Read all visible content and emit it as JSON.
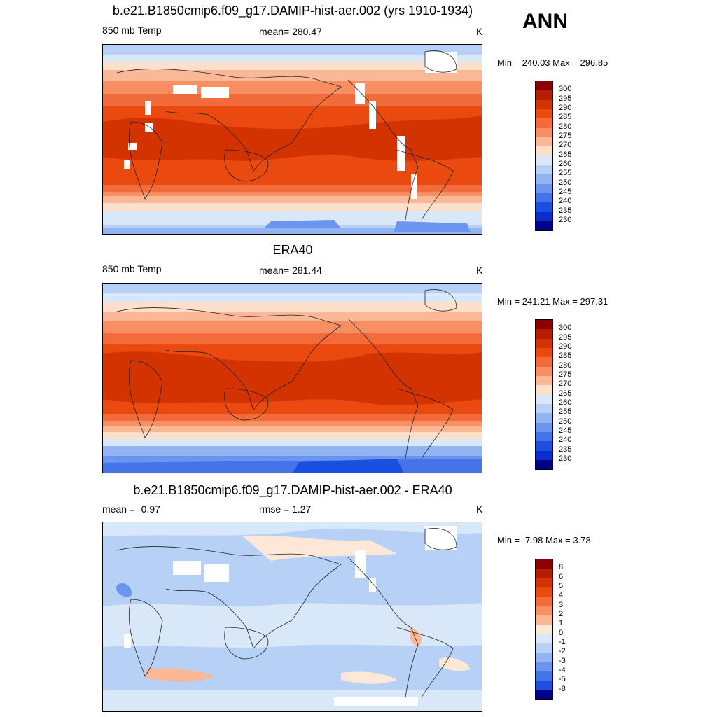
{
  "season": "ANN",
  "panels": [
    {
      "title": "b.e21.B1850cmip6.f09_g17.DAMIP-hist-aer.002 (yrs 1910-1934)",
      "left_label": "850 mb Temp",
      "center_label": "mean= 280.47",
      "units": "K",
      "minmax": "Min = 240.03 Max = 296.85",
      "kind": "abs"
    },
    {
      "title": "ERA40",
      "left_label": "850 mb Temp",
      "center_label": "mean= 281.44",
      "units": "K",
      "minmax": "Min = 241.21 Max = 297.31",
      "kind": "abs"
    },
    {
      "title": "b.e21.B1850cmip6.f09_g17.DAMIP-hist-aer.002 - ERA40",
      "left_label": "mean =  -0.97",
      "center_label": "rmse =   1.27",
      "units": "K",
      "minmax": "Min =  -7.98 Max =   3.78",
      "kind": "diff"
    }
  ],
  "colorbars": {
    "abs": {
      "labels": [
        "300",
        "295",
        "290",
        "285",
        "280",
        "275",
        "270",
        "265",
        "260",
        "255",
        "250",
        "245",
        "240",
        "235",
        "230"
      ],
      "colors": [
        "#8b0000",
        "#b22000",
        "#d23300",
        "#ea4a10",
        "#f26b3a",
        "#f78f62",
        "#fab897",
        "#fde0cc",
        "#d8e8f8",
        "#b7d0f5",
        "#93b4f2",
        "#6b95ee",
        "#4473ea",
        "#1a4fe0",
        "#0a2fc8",
        "#00008b"
      ]
    },
    "diff": {
      "labels": [
        "8",
        "6",
        "5",
        "4",
        "3",
        "2",
        "1",
        "0",
        "-1",
        "-2",
        "-3",
        "-4",
        "-5",
        "-8"
      ],
      "colors": [
        "#8b0000",
        "#b22000",
        "#d23300",
        "#ea4a10",
        "#f26b3a",
        "#f78f62",
        "#fab897",
        "#fde8d8",
        "#d8e8f8",
        "#b7d0f5",
        "#93b4f2",
        "#6b95ee",
        "#4473ea",
        "#1a4fe0",
        "#00008b"
      ]
    }
  }
}
